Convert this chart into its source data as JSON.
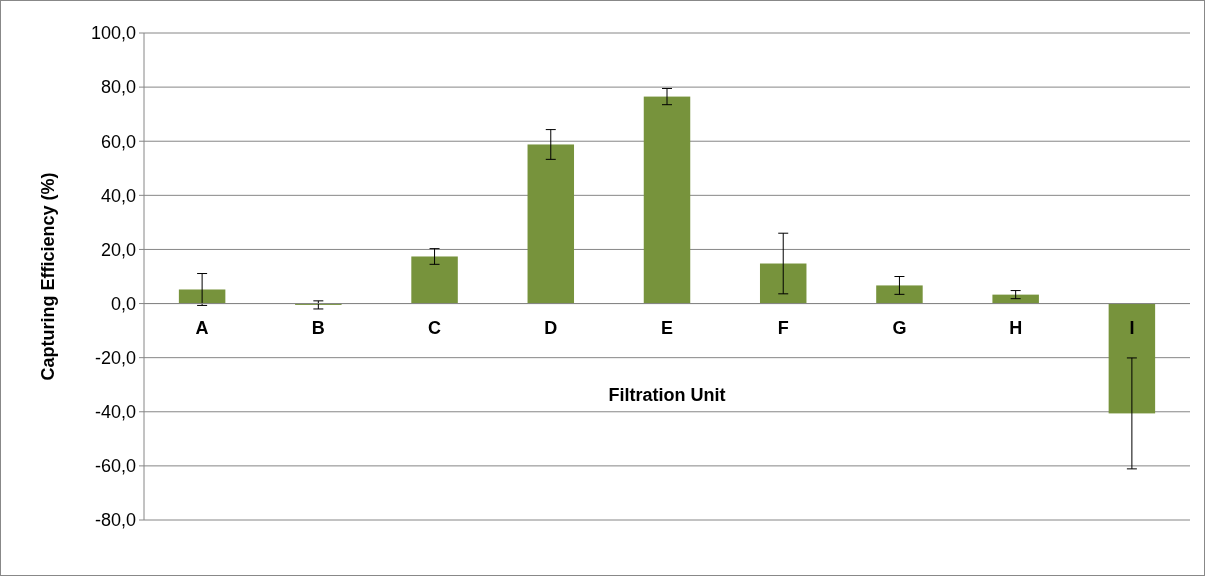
{
  "chart_data": {
    "type": "bar",
    "xlabel": "Filtration Unit",
    "ylabel": "Capturing Efficiency (%)",
    "categories": [
      "A",
      "B",
      "C",
      "D",
      "E",
      "F",
      "G",
      "H",
      "I"
    ],
    "values": [
      5.2,
      -0.5,
      17.4,
      58.8,
      76.5,
      14.8,
      6.7,
      3.3,
      -40.6
    ],
    "errors": [
      5.9,
      1.5,
      2.9,
      5.5,
      3,
      11.2,
      3.3,
      1.5,
      20.5
    ],
    "color": "#77933c",
    "ylim": [
      -80,
      100
    ],
    "yticks": [
      {
        "value": -80,
        "label": "-80,0"
      },
      {
        "value": -60,
        "label": "-60,0"
      },
      {
        "value": -40,
        "label": "-40,0"
      },
      {
        "value": -20,
        "label": "-20,0"
      },
      {
        "value": 0,
        "label": "0,0"
      },
      {
        "value": 20,
        "label": "20,0"
      },
      {
        "value": 40,
        "label": "40,0"
      },
      {
        "value": 60,
        "label": "60,0"
      },
      {
        "value": 80,
        "label": "80,0"
      },
      {
        "value": 100,
        "label": "100,0"
      }
    ],
    "grid": "y"
  }
}
